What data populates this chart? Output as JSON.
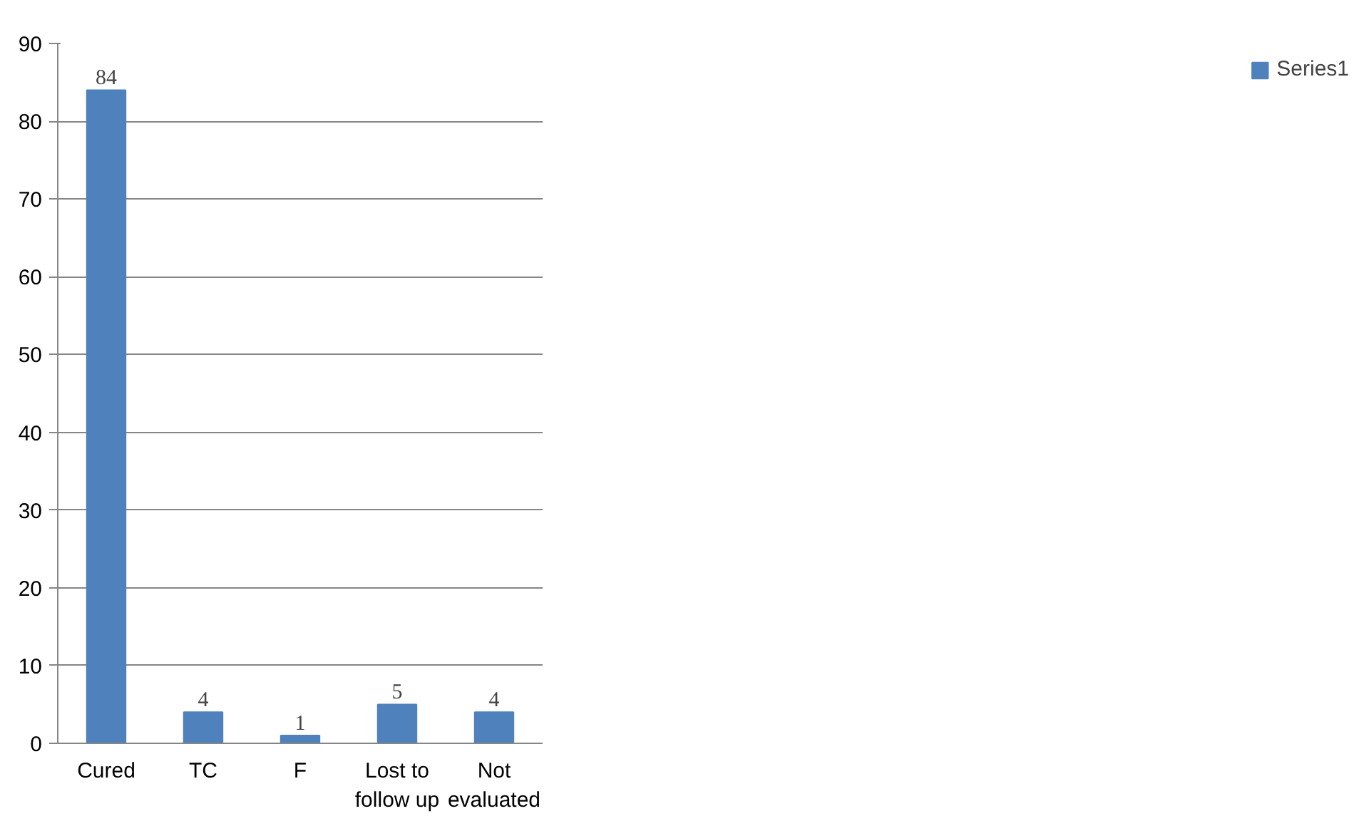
{
  "chart_data": {
    "type": "bar",
    "categories": [
      "Cured",
      "TC",
      "F",
      "Lost to follow up",
      "Not evaluated"
    ],
    "series": [
      {
        "name": "Series1",
        "color": "#4f81bd",
        "values": [
          84,
          4,
          1,
          5,
          4
        ]
      }
    ],
    "ylim": [
      0,
      90
    ],
    "yticks": [
      0,
      10,
      20,
      30,
      40,
      50,
      60,
      70,
      80,
      90
    ],
    "grid": "y",
    "legend": "right",
    "data_labels": true
  }
}
